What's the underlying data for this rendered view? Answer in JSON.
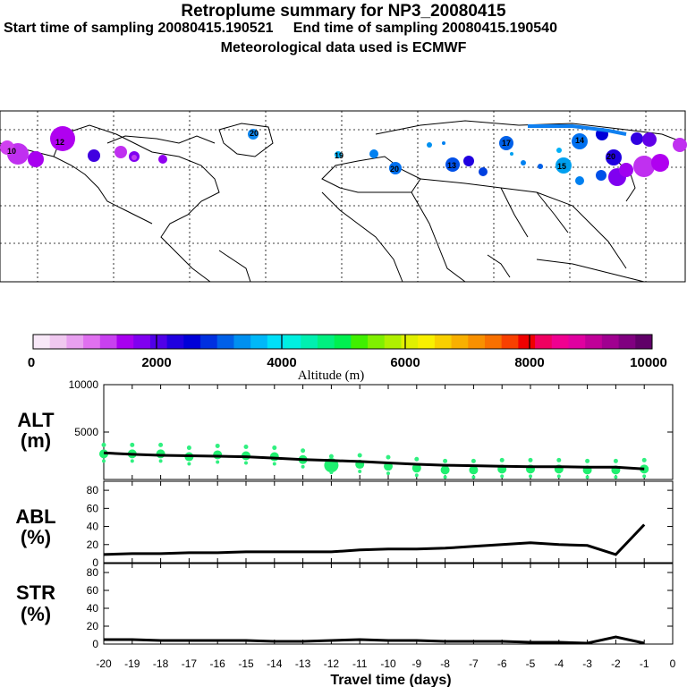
{
  "header": {
    "title": "Retroplume summary for NP3_20080415",
    "sampling": "Start time of sampling 20080415.190521     End time of sampling 20080415.190540",
    "met": "Meteorological data used is ECMWF"
  },
  "colorbar": {
    "ticks": [
      "0",
      "2000",
      "4000",
      "6000",
      "8000",
      "10000"
    ],
    "label": "Altitude (m)",
    "colors": [
      "#f8e8f8",
      "#f0c8f0",
      "#e8a0f0",
      "#e070f0",
      "#c840f0",
      "#a800f0",
      "#8000f0",
      "#5000e8",
      "#2000e0",
      "#0000d8",
      "#0030e0",
      "#0060e8",
      "#0090f0",
      "#00b8f8",
      "#00e0f8",
      "#00f0e0",
      "#00f0b0",
      "#00f080",
      "#00f050",
      "#40f000",
      "#80f000",
      "#b0f000",
      "#e0f000",
      "#f8f000",
      "#f8d000",
      "#f8b000",
      "#f89000",
      "#f87000",
      "#f84000",
      "#f00000",
      "#f00060",
      "#f00090",
      "#e000a0",
      "#c00098",
      "#a00090",
      "#800080",
      "#600068"
    ]
  },
  "map_labels": {
    "n1": "12",
    "n2": "20",
    "n3": "19",
    "n4": "17",
    "n5": "13",
    "n6": "20",
    "n7": "14",
    "n8": "15",
    "n9": "20",
    "n10": "10"
  },
  "panels": {
    "alt": {
      "label_top": "ALT",
      "label_bottom": "(m)"
    },
    "abl": {
      "label_top": "ABL",
      "label_bottom": "(%)"
    },
    "str": {
      "label_top": "STR",
      "label_bottom": "(%)"
    }
  },
  "chart_data": [
    {
      "type": "line",
      "name": "ALT",
      "ylabel": "ALT (m)",
      "ylim": [
        0,
        10000
      ],
      "yticks": [
        10000,
        5000
      ],
      "x": [
        -20,
        -19,
        -18,
        -17,
        -16,
        -15,
        -14,
        -13,
        -12,
        -11,
        -10,
        -9,
        -8,
        -7,
        -6,
        -5,
        -4,
        -3,
        -2,
        -1
      ],
      "values": [
        2800,
        2650,
        2550,
        2500,
        2450,
        2400,
        2250,
        2100,
        2000,
        1900,
        1750,
        1600,
        1500,
        1450,
        1400,
        1350,
        1350,
        1300,
        1300,
        1100
      ],
      "scatter_centers": [
        2700,
        2700,
        2700,
        2400,
        2600,
        2500,
        2400,
        2100,
        1500,
        1600,
        1400,
        1200,
        1000,
        1000,
        1100,
        1100,
        1100,
        1000,
        1000,
        1100
      ]
    },
    {
      "type": "line",
      "name": "ABL",
      "ylabel": "ABL (%)",
      "ylim": [
        0,
        90
      ],
      "yticks": [
        0,
        20,
        40,
        60,
        80
      ],
      "x": [
        -20,
        -19,
        -18,
        -17,
        -16,
        -15,
        -14,
        -13,
        -12,
        -11,
        -10,
        -9,
        -8,
        -7,
        -6,
        -5,
        -4,
        -3,
        -2,
        -1
      ],
      "values": [
        9,
        10,
        10,
        11,
        11,
        12,
        12,
        12,
        12,
        14,
        15,
        15,
        16,
        18,
        20,
        22,
        20,
        19,
        9,
        42
      ]
    },
    {
      "type": "line",
      "name": "STR",
      "ylabel": "STR (%)",
      "ylim": [
        0,
        90
      ],
      "yticks": [
        0,
        20,
        40,
        60,
        80
      ],
      "xlabel": "Travel time (days)",
      "xlim": [
        -20,
        0
      ],
      "xticks": [
        "-20",
        "-19",
        "-18",
        "-17",
        "-16",
        "-15",
        "-14",
        "-13",
        "-12",
        "-11",
        "-10",
        "-9",
        "-8",
        "-7",
        "-6",
        "-5",
        "-4",
        "-3",
        "-2",
        "-1",
        "0"
      ],
      "x": [
        -20,
        -19,
        -18,
        -17,
        -16,
        -15,
        -14,
        -13,
        -12,
        -11,
        -10,
        -9,
        -8,
        -7,
        -6,
        -5,
        -4,
        -3,
        -2,
        -1
      ],
      "values": [
        5,
        5,
        4,
        4,
        4,
        4,
        3,
        3,
        4,
        5,
        4,
        4,
        3,
        3,
        3,
        2,
        2,
        1,
        8,
        1
      ]
    }
  ]
}
